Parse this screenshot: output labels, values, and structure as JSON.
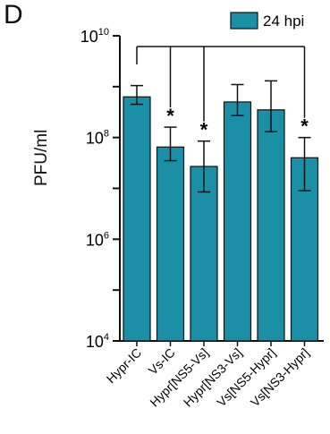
{
  "panel_letter": "D",
  "chart_data": {
    "type": "bar",
    "ylabel": "PFU/ml",
    "yscale": "log",
    "ylim": [
      10000,
      10000000000
    ],
    "y_ticks": [
      {
        "base": "10",
        "exp": "4"
      },
      {
        "base": "10",
        "exp": "6"
      },
      {
        "base": "10",
        "exp": "8"
      },
      {
        "base": "10",
        "exp": "10"
      }
    ],
    "categories": [
      "Hypr-IC",
      "Vs-IC",
      "Hypr[NS5-Vs]",
      "Hypr[NS3-Vs]",
      "Vs[NS5-Hypr]",
      "Vs[NS3-Hypr]"
    ],
    "series": [
      {
        "name": "24 hpi",
        "color": "#1a8fa6",
        "values": [
          630000000,
          65000000,
          27000000,
          500000000,
          350000000,
          40000000
        ],
        "error_low": [
          450000000,
          35000000,
          8500000,
          270000000,
          130000000,
          9000000
        ],
        "error_high": [
          1050000000,
          160000000,
          85000000,
          1100000000,
          1300000000,
          100000000
        ]
      }
    ],
    "significance": [
      "",
      "*",
      "*",
      "",
      "",
      "*"
    ],
    "comparison_bracket": {
      "from": "Hypr-IC",
      "to": [
        "Vs-IC",
        "Hypr[NS5-Vs]",
        "Vs[NS3-Hypr]"
      ]
    },
    "grid": false,
    "legend": "top-right"
  }
}
